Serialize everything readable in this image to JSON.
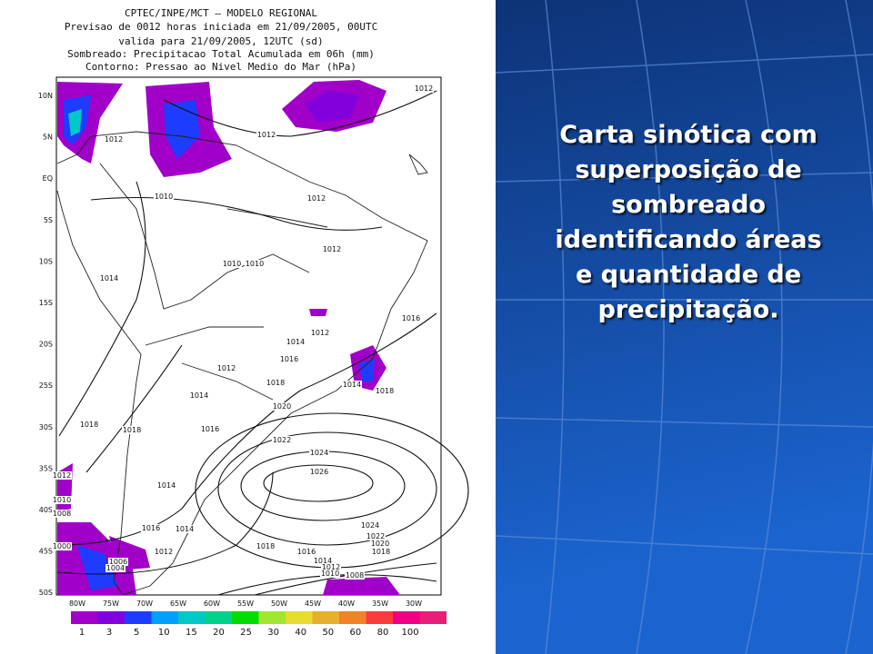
{
  "header": {
    "lines": [
      "CPTEC/INPE/MCT – MODELO REGIONAL",
      "Previsao de 0012 horas iniciada em 21/09/2005, 00UTC",
      "valida para 21/09/2005, 12UTC (sd)",
      "Sombreado: Precipitacao Total Acumulada em 06h (mm)",
      "Contorno: Pressao ao Nivel Medio do Mar (hPa)"
    ]
  },
  "map": {
    "lat_labels": [
      "10N",
      "5N",
      "EQ",
      "5S",
      "10S",
      "15S",
      "20S",
      "25S",
      "30S",
      "35S",
      "40S",
      "45S",
      "50S"
    ],
    "lon_labels": [
      "80W",
      "75W",
      "70W",
      "65W",
      "60W",
      "55W",
      "50W",
      "45W",
      "40W",
      "35W",
      "30W"
    ],
    "isobar_labels": [
      "1012",
      "1012",
      "1012",
      "1010",
      "1012",
      "1012",
      "1010",
      "1010",
      "1014",
      "1016",
      "1012",
      "1014",
      "1016",
      "1012",
      "1014",
      "1018",
      "1014",
      "1018",
      "1020",
      "1018",
      "1018",
      "1016",
      "1022",
      "1024",
      "1026",
      "1014",
      "1012",
      "1010",
      "1008",
      "1016",
      "1014",
      "1024",
      "1022",
      "1020",
      "1018",
      "1018",
      "1016",
      "1014",
      "1012",
      "1010",
      "1008",
      "1000",
      "1012",
      "1006",
      "1004"
    ]
  },
  "colorbar": {
    "labels": [
      1,
      3,
      5,
      10,
      15,
      20,
      25,
      30,
      40,
      50,
      60,
      80,
      100
    ],
    "colors": [
      "#a000c8",
      "#8200dc",
      "#1e3cff",
      "#00a0ff",
      "#00c8c8",
      "#00d28c",
      "#00dc00",
      "#a0e632",
      "#e6dc32",
      "#e6af2d",
      "#f08228",
      "#fa3c3c",
      "#f00082",
      "#e61e78"
    ]
  },
  "caption": {
    "lines": [
      "Carta sinótica com",
      "superposição de",
      "sombreado",
      "identificando áreas",
      "e quantidade de",
      "precipitação."
    ]
  }
}
